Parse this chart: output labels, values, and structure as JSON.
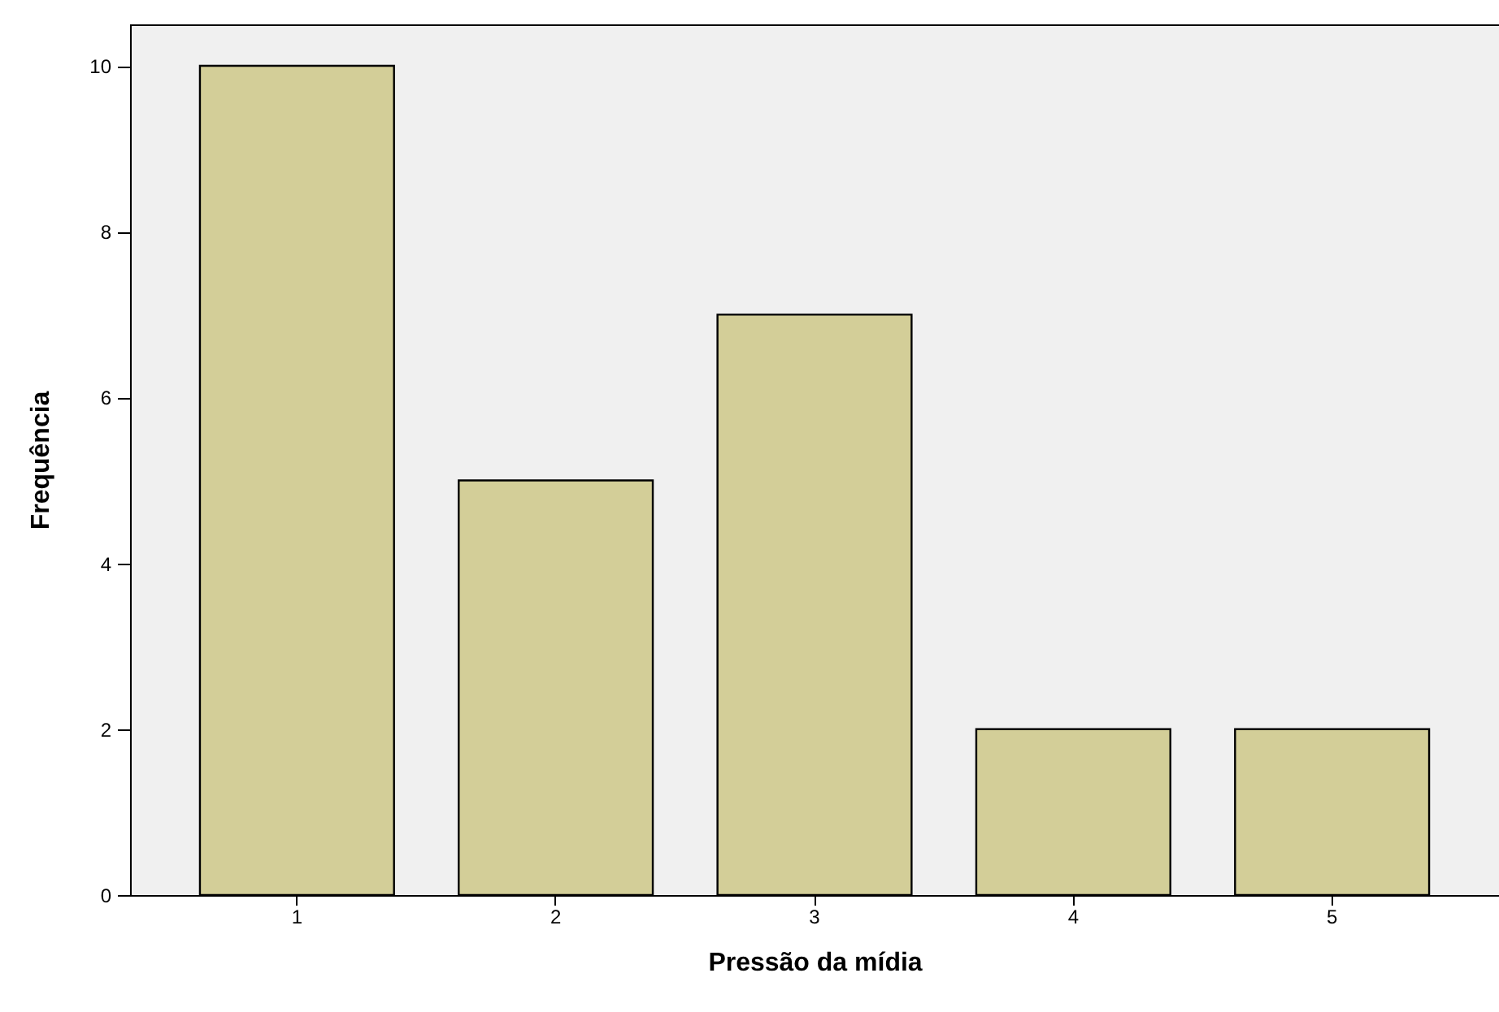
{
  "chart_data": {
    "type": "bar",
    "xlabel": "Pressão da mídia",
    "ylabel": "Frequência",
    "categories": [
      "1",
      "2",
      "3",
      "4",
      "5"
    ],
    "values": [
      10,
      5,
      7,
      2,
      2
    ],
    "color": "#d3ce98",
    "ylim": [
      0,
      10.5
    ],
    "yticks": [
      0,
      2,
      4,
      6,
      8,
      10
    ],
    "grid": false
  }
}
